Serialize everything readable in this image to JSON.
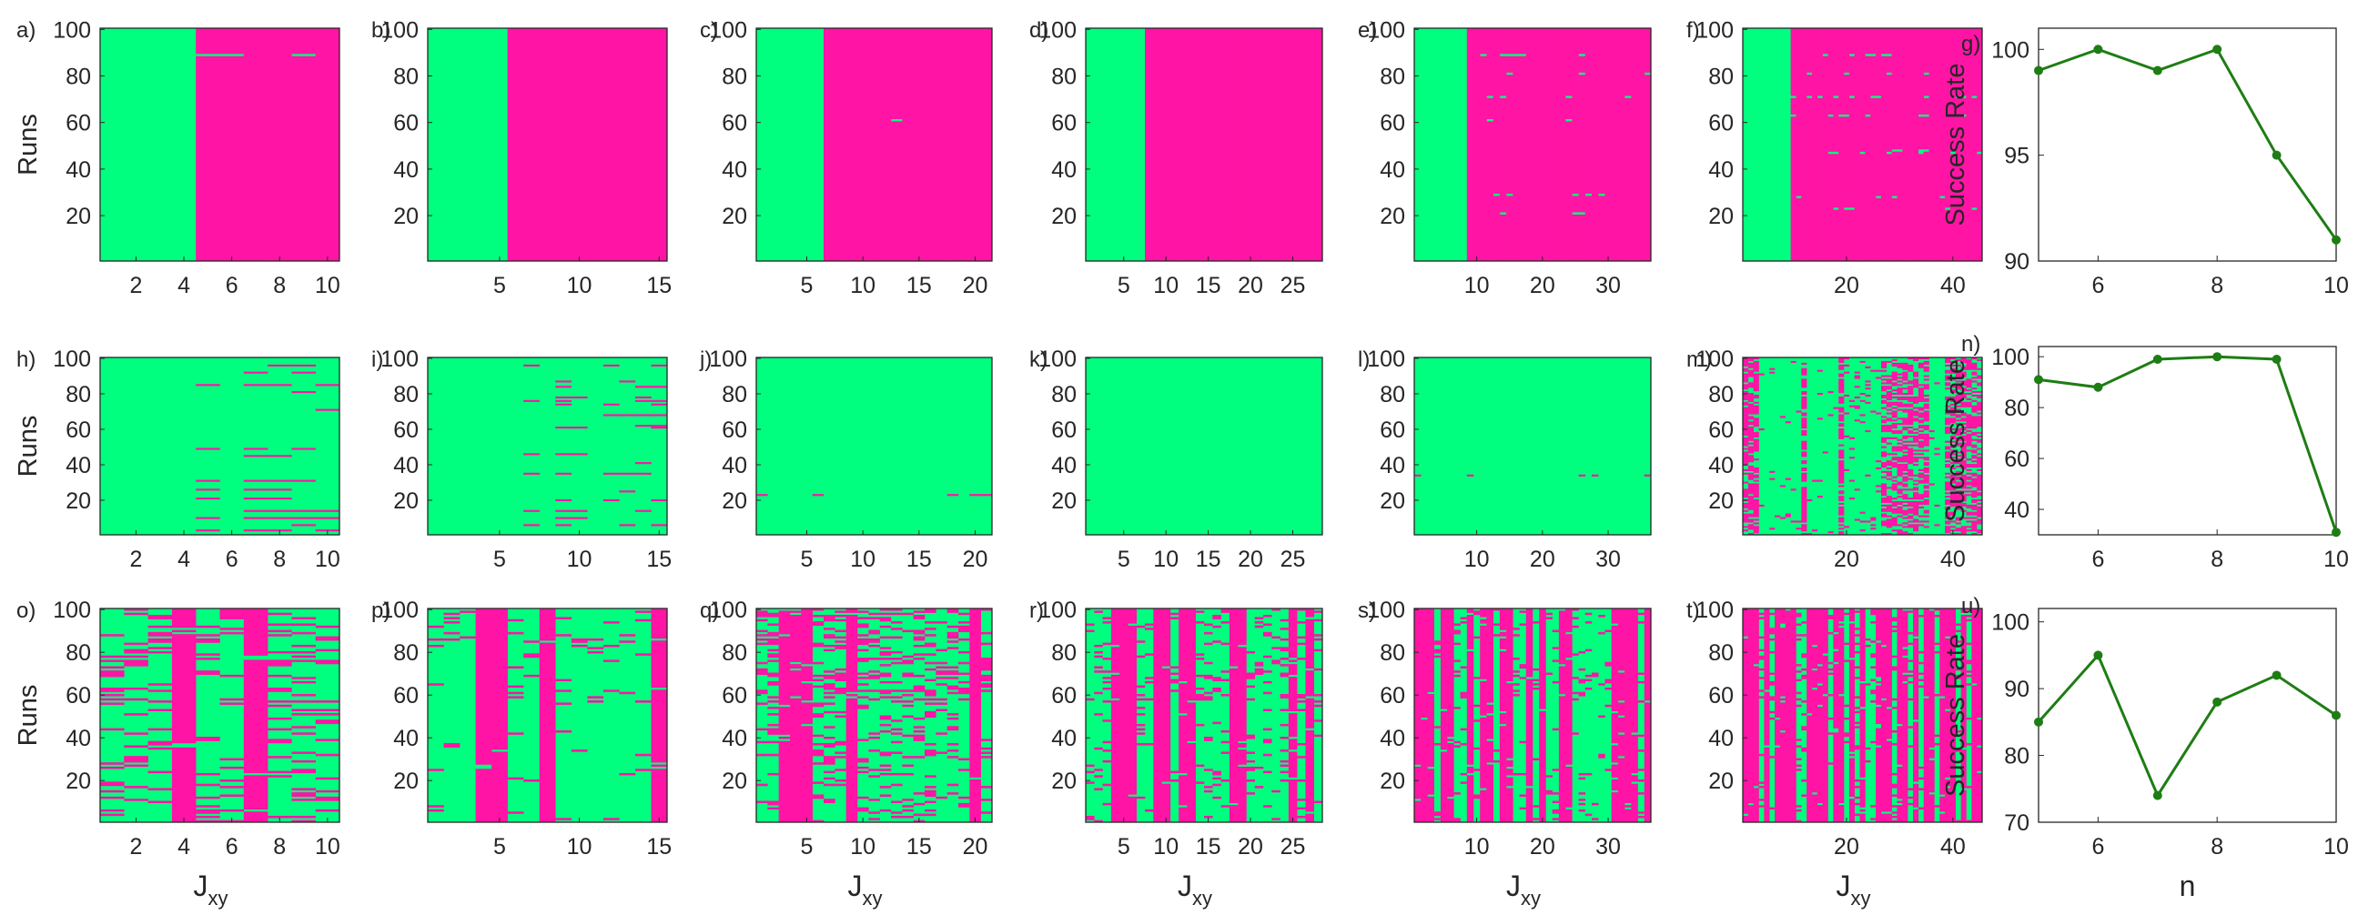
{
  "colors": {
    "success": "#00ff7f",
    "failure": "#ff14a5",
    "line": "#1e7d14",
    "axis": "#262626"
  },
  "labels": {
    "runs": "Runs",
    "success_rate": "Success Rate",
    "jxy_main": "J",
    "jxy_sub": "xy",
    "n": "n"
  },
  "panel_letters": [
    "a)",
    "b)",
    "c)",
    "d)",
    "e)",
    "f)",
    "g)",
    "h)",
    "i)",
    "j)",
    "k)",
    "l)",
    "m)",
    "n)",
    "o)",
    "p)",
    "q)",
    "r)",
    "s)",
    "t)",
    "u)"
  ],
  "heatmap_config": {
    "y_ticks": [
      20,
      40,
      60,
      80,
      100
    ],
    "runs": 100,
    "columns": [
      10,
      15,
      21,
      28,
      36,
      45
    ],
    "x_ticks": [
      [
        2,
        4,
        6,
        8,
        10
      ],
      [
        5,
        10,
        15
      ],
      [
        5,
        10,
        15,
        20
      ],
      [
        5,
        10,
        15,
        20,
        25
      ],
      [
        10,
        20,
        30
      ],
      [
        20,
        40
      ]
    ],
    "row3_x_ticks": [
      [
        2,
        4,
        6,
        8,
        10
      ],
      [
        5,
        10,
        15
      ],
      [
        5,
        10,
        15,
        20
      ],
      [
        5,
        10,
        15,
        20,
        25
      ],
      [
        10,
        20,
        30
      ],
      [
        20,
        40
      ]
    ]
  },
  "chart_data": [
    {
      "panel": "a)",
      "type": "heatmap",
      "n_columns": 10,
      "ylabel": "Runs",
      "success_columns": "1-4",
      "failure_columns": "5-10"
    },
    {
      "panel": "b)",
      "type": "heatmap",
      "n_columns": 15,
      "success_columns": "1-5",
      "failure_columns": "6-15"
    },
    {
      "panel": "c)",
      "type": "heatmap",
      "n_columns": 21,
      "success_columns": "1-6",
      "failure_columns": "7-21"
    },
    {
      "panel": "d)",
      "type": "heatmap",
      "n_columns": 28,
      "success_columns": "1-7",
      "failure_columns": "8-28"
    },
    {
      "panel": "e)",
      "type": "heatmap",
      "n_columns": 36,
      "success_columns": "1-8",
      "failure_columns": "9-36"
    },
    {
      "panel": "f)",
      "type": "heatmap",
      "n_columns": 45,
      "success_columns": "1-9",
      "failure_columns": "10-45"
    },
    {
      "panel": "g)",
      "type": "line",
      "x": [
        5,
        6,
        7,
        8,
        9,
        10
      ],
      "y": [
        99,
        100,
        99,
        100,
        95,
        91
      ],
      "xlim": [
        5,
        10
      ],
      "ylim": [
        90,
        101
      ],
      "xticks": [
        6,
        8,
        10
      ],
      "yticks": [
        90,
        95,
        100
      ],
      "ylabel": "Success Rate"
    },
    {
      "panel": "h)",
      "type": "heatmap",
      "n_columns": 10,
      "ylabel": "Runs",
      "failure_columns": "5,7-10 (sparse runs)"
    },
    {
      "panel": "i)",
      "type": "heatmap",
      "n_columns": 15,
      "failure_columns": "sparse"
    },
    {
      "panel": "j)",
      "type": "heatmap",
      "n_columns": 21,
      "failure_columns": "very sparse"
    },
    {
      "panel": "k)",
      "type": "heatmap",
      "n_columns": 28,
      "failure_columns": "none"
    },
    {
      "panel": "l)",
      "type": "heatmap",
      "n_columns": 36,
      "failure_columns": "very sparse"
    },
    {
      "panel": "m)",
      "type": "heatmap",
      "n_columns": 45,
      "failure_columns": "mixed"
    },
    {
      "panel": "n)",
      "type": "line",
      "x": [
        5,
        6,
        7,
        8,
        9,
        10
      ],
      "y": [
        91,
        88,
        99,
        100,
        99,
        31
      ],
      "xlim": [
        5,
        10
      ],
      "ylim": [
        30,
        104
      ],
      "xticks": [
        6,
        8,
        10
      ],
      "yticks": [
        40,
        60,
        80,
        100
      ],
      "ylabel": "Success Rate"
    },
    {
      "panel": "o)",
      "type": "heatmap",
      "n_columns": 10,
      "ylabel": "Runs",
      "xlabel": "J_xy",
      "failure_columns": "4,7 full; others sparse"
    },
    {
      "panel": "p)",
      "type": "heatmap",
      "n_columns": 15,
      "xlabel": "",
      "failure_columns": "4,5,8,15 full"
    },
    {
      "panel": "q)",
      "type": "heatmap",
      "n_columns": 21,
      "xlabel": "J_xy",
      "failure_columns": "mixed"
    },
    {
      "panel": "r)",
      "type": "heatmap",
      "n_columns": 28,
      "xlabel": "J_xy",
      "failure_columns": "mixed"
    },
    {
      "panel": "s)",
      "type": "heatmap",
      "n_columns": 36,
      "xlabel": "J_xy",
      "failure_columns": "mixed"
    },
    {
      "panel": "t)",
      "type": "heatmap",
      "n_columns": 45,
      "xlabel": "J_xy",
      "failure_columns": "mixed"
    },
    {
      "panel": "u)",
      "type": "line",
      "x": [
        5,
        6,
        7,
        8,
        9,
        10
      ],
      "y": [
        85,
        95,
        74,
        88,
        92,
        86
      ],
      "xlim": [
        5,
        10
      ],
      "ylim": [
        70,
        102
      ],
      "xticks": [
        6,
        8,
        10
      ],
      "yticks": [
        70,
        80,
        90,
        100
      ],
      "ylabel": "Success Rate",
      "xlabel": "n"
    }
  ]
}
